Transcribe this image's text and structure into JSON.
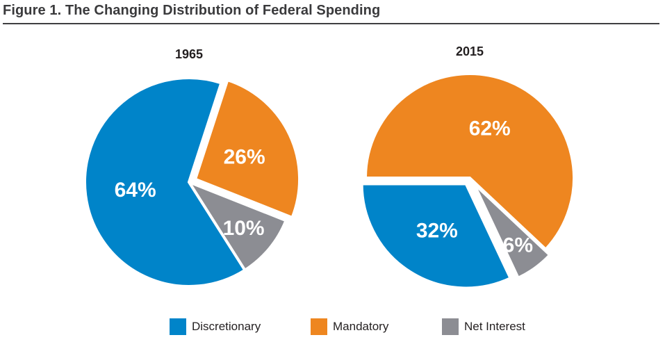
{
  "chart_data": [
    {
      "type": "pie",
      "title": "1965",
      "categories": [
        "Discretionary",
        "Mandatory",
        "Net Interest"
      ],
      "values": [
        64,
        26,
        10
      ],
      "labels": [
        "64%",
        "26%",
        "10%"
      ],
      "exploded": [
        "Mandatory"
      ]
    },
    {
      "type": "pie",
      "title": "2015",
      "categories": [
        "Discretionary",
        "Mandatory",
        "Net Interest"
      ],
      "values": [
        32,
        62,
        6
      ],
      "labels": [
        "32%",
        "62%",
        "6%"
      ],
      "exploded": [
        "Discretionary",
        "Net Interest"
      ]
    }
  ],
  "figure": {
    "title": "Figure 1. The Changing Distribution of Federal Spending"
  },
  "legend": [
    {
      "label": "Discretionary",
      "color": "#0084c9"
    },
    {
      "label": "Mandatory",
      "color": "#ee8620"
    },
    {
      "label": "Net Interest",
      "color": "#8c8d93"
    }
  ],
  "colors": {
    "Discretionary": "#0084c9",
    "Mandatory": "#ee8620",
    "Net Interest": "#8c8d93"
  }
}
